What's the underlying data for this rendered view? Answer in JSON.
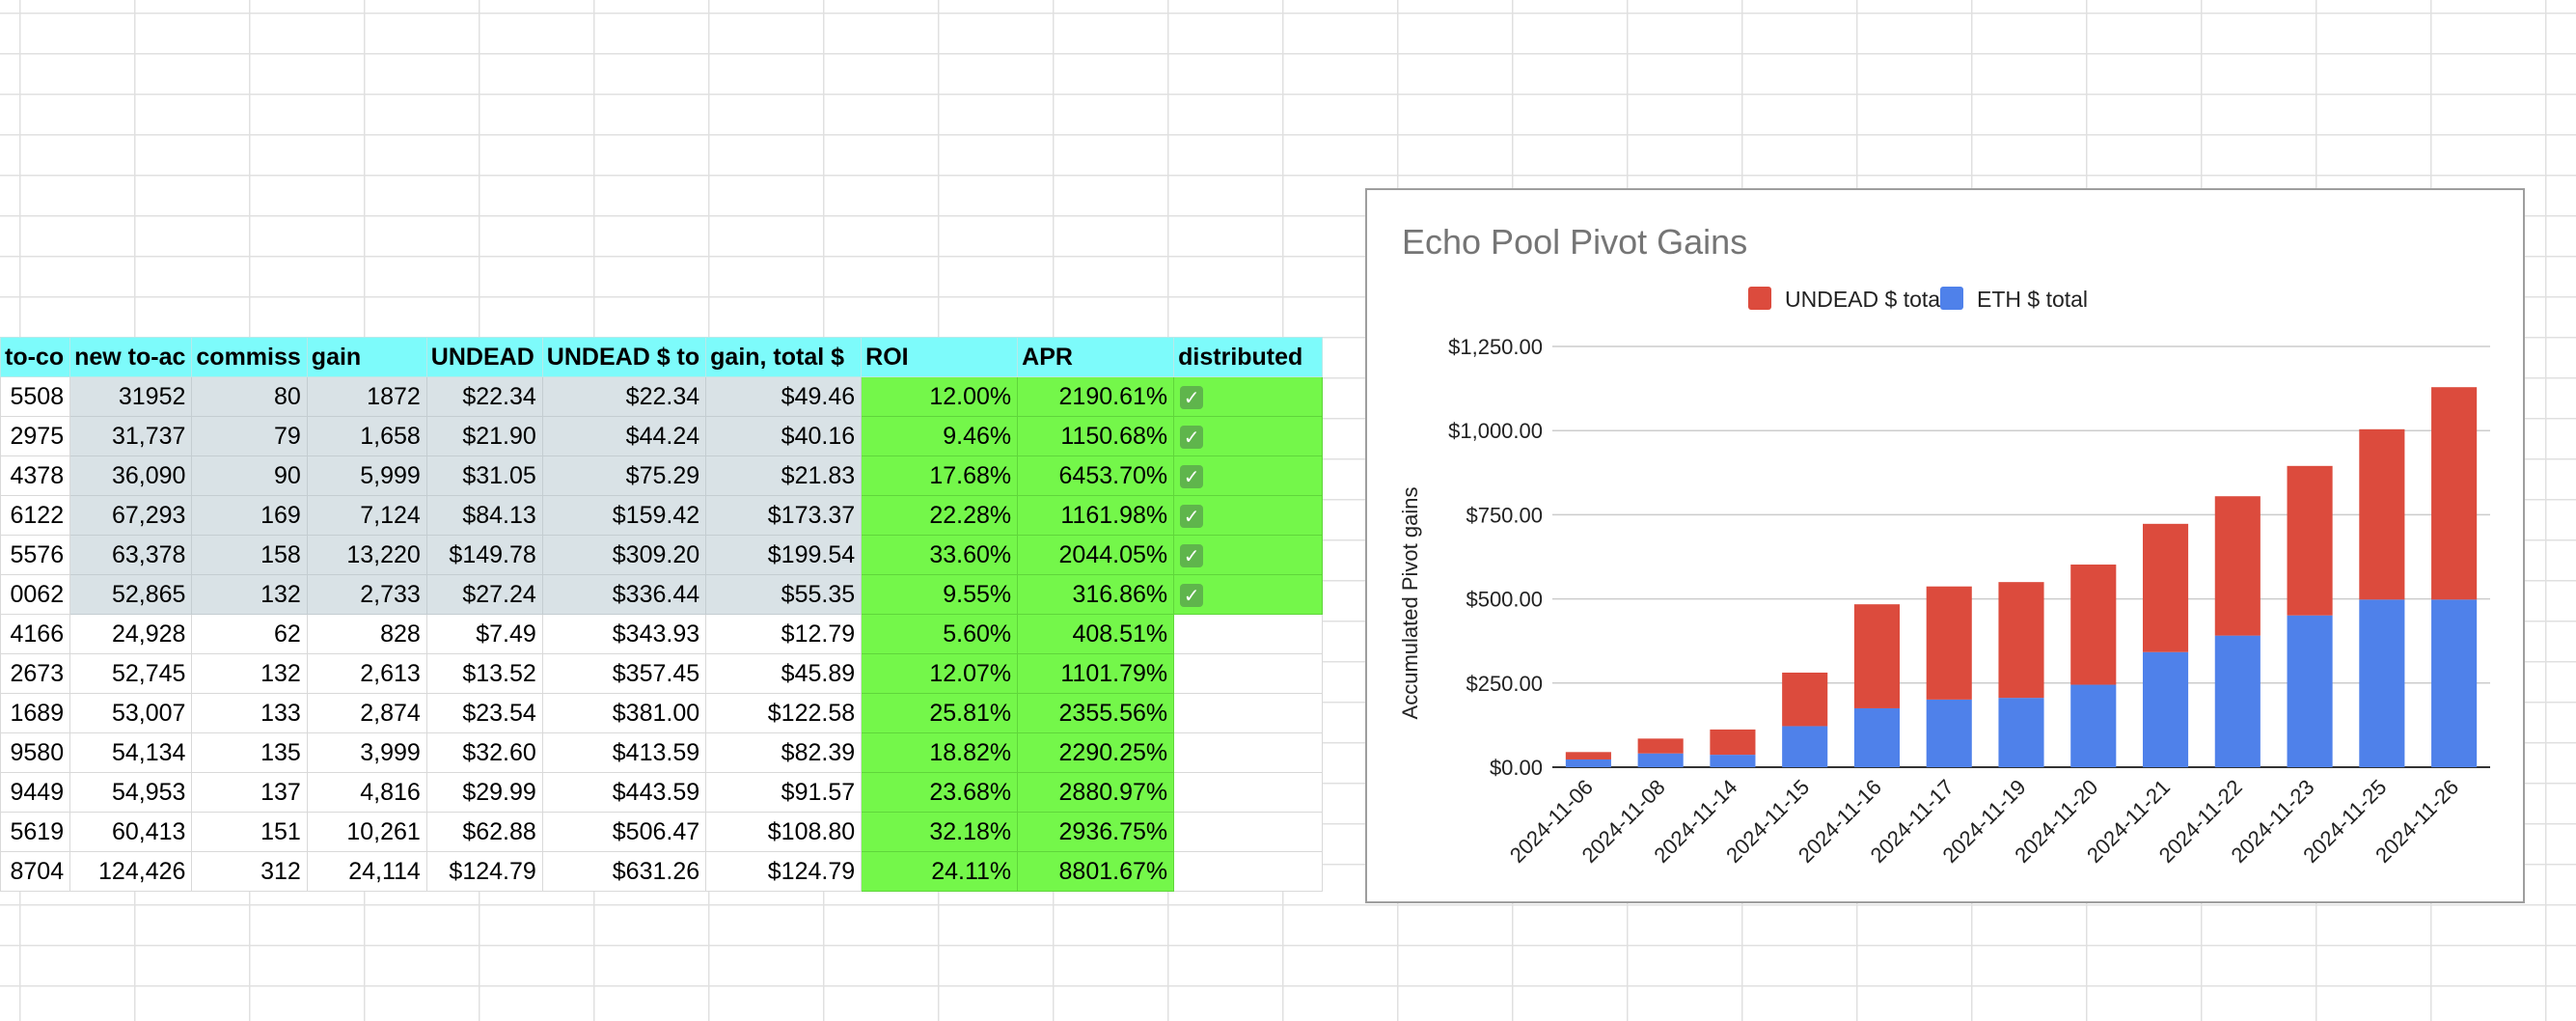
{
  "sheet": {
    "headers": [
      "to-co",
      "new to-ac",
      "commiss",
      "gain",
      "UNDEAD",
      "UNDEAD $ to",
      "gain, total $",
      "ROI",
      "APR",
      "distributed"
    ],
    "rows": [
      {
        "c": [
          "5508",
          "31952",
          "80",
          "1872",
          "$22.34",
          "$22.34",
          "$49.46",
          "12.00%",
          "2190.61%"
        ],
        "distributed": true
      },
      {
        "c": [
          "2975",
          "31,737",
          "79",
          "1,658",
          "$21.90",
          "$44.24",
          "$40.16",
          "9.46%",
          "1150.68%"
        ],
        "distributed": true
      },
      {
        "c": [
          "4378",
          "36,090",
          "90",
          "5,999",
          "$31.05",
          "$75.29",
          "$21.83",
          "17.68%",
          "6453.70%"
        ],
        "distributed": true
      },
      {
        "c": [
          "6122",
          "67,293",
          "169",
          "7,124",
          "$84.13",
          "$159.42",
          "$173.37",
          "22.28%",
          "1161.98%"
        ],
        "distributed": true
      },
      {
        "c": [
          "5576",
          "63,378",
          "158",
          "13,220",
          "$149.78",
          "$309.20",
          "$199.54",
          "33.60%",
          "2044.05%"
        ],
        "distributed": true
      },
      {
        "c": [
          "0062",
          "52,865",
          "132",
          "2,733",
          "$27.24",
          "$336.44",
          "$55.35",
          "9.55%",
          "316.86%"
        ],
        "distributed": true
      },
      {
        "c": [
          "4166",
          "24,928",
          "62",
          "828",
          "$7.49",
          "$343.93",
          "$12.79",
          "5.60%",
          "408.51%"
        ],
        "distributed": false
      },
      {
        "c": [
          "2673",
          "52,745",
          "132",
          "2,613",
          "$13.52",
          "$357.45",
          "$45.89",
          "12.07%",
          "1101.79%"
        ],
        "distributed": false
      },
      {
        "c": [
          "1689",
          "53,007",
          "133",
          "2,874",
          "$23.54",
          "$381.00",
          "$122.58",
          "25.81%",
          "2355.56%"
        ],
        "distributed": false
      },
      {
        "c": [
          "9580",
          "54,134",
          "135",
          "3,999",
          "$32.60",
          "$413.59",
          "$82.39",
          "18.82%",
          "2290.25%"
        ],
        "distributed": false
      },
      {
        "c": [
          "9449",
          "54,953",
          "137",
          "4,816",
          "$29.99",
          "$443.59",
          "$91.57",
          "23.68%",
          "2880.97%"
        ],
        "distributed": false
      },
      {
        "c": [
          "5619",
          "60,413",
          "151",
          "10,261",
          "$62.88",
          "$506.47",
          "$108.80",
          "32.18%",
          "2936.75%"
        ],
        "distributed": false
      },
      {
        "c": [
          "8704",
          "124,426",
          "312",
          "24,114",
          "$124.79",
          "$631.26",
          "$124.79",
          "24.11%",
          "8801.67%"
        ],
        "distributed": false
      }
    ],
    "check_glyph": "✓"
  },
  "chart_data": {
    "type": "bar",
    "stacked": true,
    "title": "Echo Pool Pivot Gains",
    "ylabel": "Accumulated Pivot gains",
    "xlabel": "",
    "categories": [
      "2024-11-06",
      "2024-11-08",
      "2024-11-14",
      "2024-11-15",
      "2024-11-16",
      "2024-11-17",
      "2024-11-19",
      "2024-11-20",
      "2024-11-21",
      "2024-11-22",
      "2024-11-23",
      "2024-11-25",
      "2024-11-26"
    ],
    "series": [
      {
        "name": "ETH $ total",
        "color": "#4f81ea",
        "values": [
          23,
          41,
          37,
          122,
          175,
          201,
          206,
          245,
          342,
          391,
          451,
          498,
          498
        ]
      },
      {
        "name": "UNDEAD $ total",
        "color": "#dc4b3d",
        "values": [
          22,
          44,
          75,
          159,
          309,
          336,
          344,
          357,
          381,
          414,
          444,
          506,
          631
        ]
      }
    ],
    "legend_order": [
      "UNDEAD $ total",
      "ETH $ total"
    ],
    "legend_position": "top",
    "yticks": [
      "$0.00",
      "$250.00",
      "$500.00",
      "$750.00",
      "$1,000.00",
      "$1,250.00"
    ],
    "ylim": [
      0,
      1250
    ],
    "grid": true
  }
}
